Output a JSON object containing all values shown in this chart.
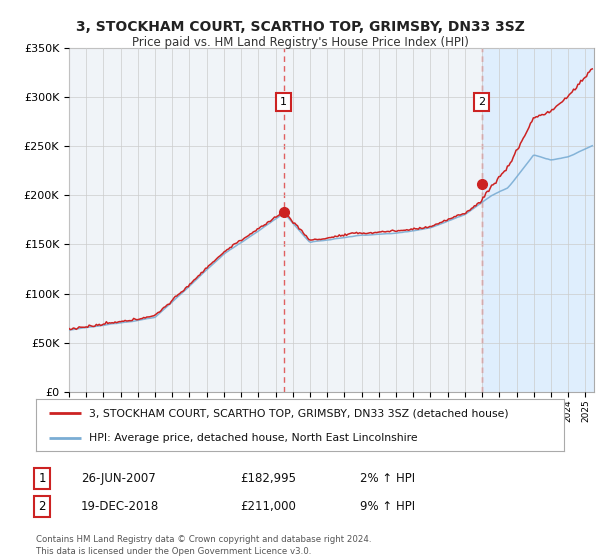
{
  "title": "3, STOCKHAM COURT, SCARTHO TOP, GRIMSBY, DN33 3SZ",
  "subtitle": "Price paid vs. HM Land Registry's House Price Index (HPI)",
  "ylim": [
    0,
    350000
  ],
  "xlim_start": 1995.0,
  "xlim_end": 2025.5,
  "sale1_date": 2007.48,
  "sale1_price": 182995,
  "sale2_date": 2018.97,
  "sale2_price": 211000,
  "legend_line1": "3, STOCKHAM COURT, SCARTHO TOP, GRIMSBY, DN33 3SZ (detached house)",
  "legend_line2": "HPI: Average price, detached house, North East Lincolnshire",
  "table_row1": [
    "1",
    "26-JUN-2007",
    "£182,995",
    "2% ↑ HPI"
  ],
  "table_row2": [
    "2",
    "19-DEC-2018",
    "£211,000",
    "9% ↑ HPI"
  ],
  "footer": "Contains HM Land Registry data © Crown copyright and database right 2024.\nThis data is licensed under the Open Government Licence v3.0.",
  "hpi_color": "#7aadd4",
  "price_color": "#cc2222",
  "sale_vline_color": "#e06060",
  "shade_color": "#ddeeff",
  "background_color": "#ffffff",
  "grid_color": "#cccccc",
  "plot_bg_color": "#f0f4f8"
}
